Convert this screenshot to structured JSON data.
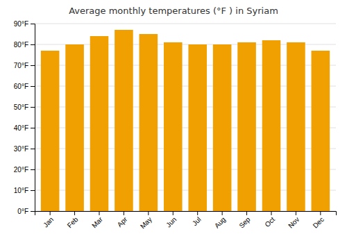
{
  "chart_data": {
    "type": "bar",
    "title": "Average monthly temperatures (°F ) in Syriam",
    "categories": [
      "Jan",
      "Feb",
      "Mar",
      "Apr",
      "May",
      "Jun",
      "Jul",
      "Aug",
      "Sep",
      "Oct",
      "Nov",
      "Dec"
    ],
    "values": [
      77,
      80,
      84,
      87,
      85,
      81,
      80,
      80,
      81,
      82,
      81,
      77
    ],
    "color": "#F0A000",
    "ylim": [
      0,
      90
    ],
    "yticks": [
      {
        "value": 0,
        "label": "0°F"
      },
      {
        "value": 10,
        "label": "10°F"
      },
      {
        "value": 20,
        "label": "20°F"
      },
      {
        "value": 30,
        "label": "30°F"
      },
      {
        "value": 40,
        "label": "40°F"
      },
      {
        "value": 50,
        "label": "50°F"
      },
      {
        "value": 60,
        "label": "60°F"
      },
      {
        "value": 70,
        "label": "70°F"
      },
      {
        "value": 80,
        "label": "80°F"
      },
      {
        "value": 90,
        "label": "90°F"
      }
    ],
    "grid": true
  }
}
